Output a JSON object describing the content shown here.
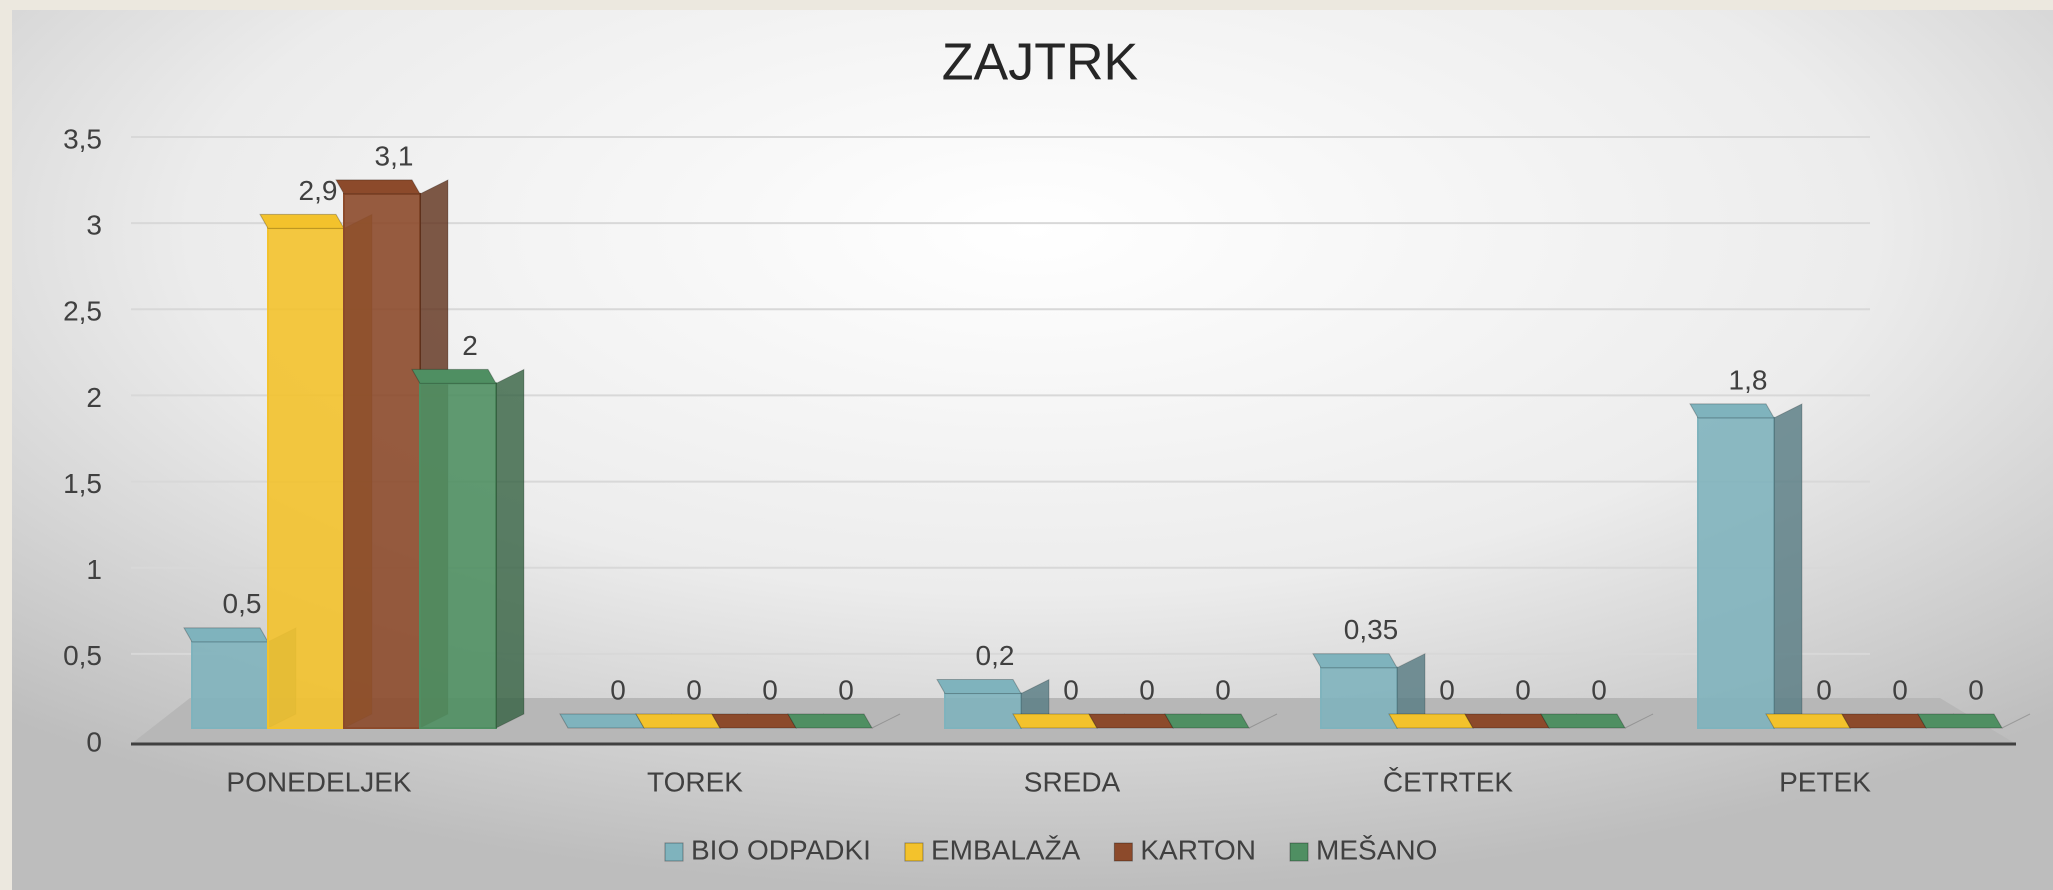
{
  "chart_data": {
    "type": "bar3d",
    "title": "ZAJTRK",
    "categories": [
      "PONEDELJEK",
      "TOREK",
      "SREDA",
      "ČETRTEK",
      "PETEK"
    ],
    "series": [
      {
        "name": "BIO ODPADKI",
        "color": "#7fb3bd",
        "values": [
          0.5,
          0,
          0.2,
          0.35,
          1.8
        ],
        "value_labels": [
          "0,5",
          "0",
          "0,2",
          "0,35",
          "1,8"
        ]
      },
      {
        "name": "EMBALAŽA",
        "color": "#f3c22c",
        "values": [
          2.9,
          0,
          0,
          0,
          0
        ],
        "value_labels": [
          "2,9",
          "0",
          "0",
          "0",
          "0"
        ]
      },
      {
        "name": "KARTON",
        "color": "#8c4a2b",
        "values": [
          3.1,
          0,
          0,
          0,
          0
        ],
        "value_labels": [
          "3,1",
          "0",
          "0",
          "0",
          "0"
        ]
      },
      {
        "name": "MEŠANO",
        "color": "#4f8f62",
        "values": [
          2,
          0,
          0,
          0,
          0
        ],
        "value_labels": [
          "2",
          "0",
          "0",
          "0",
          "0"
        ]
      }
    ],
    "ylim": [
      0,
      3.5
    ],
    "yticks": [
      0,
      {
        "value": 0.5,
        "label": "0,5"
      },
      1,
      {
        "value": 1.5,
        "label": "1,5"
      },
      2,
      {
        "value": 2.5,
        "label": "2,5"
      },
      3,
      {
        "value": 3.5,
        "label": "3,5"
      }
    ],
    "grid": true,
    "legend": "bottom"
  }
}
